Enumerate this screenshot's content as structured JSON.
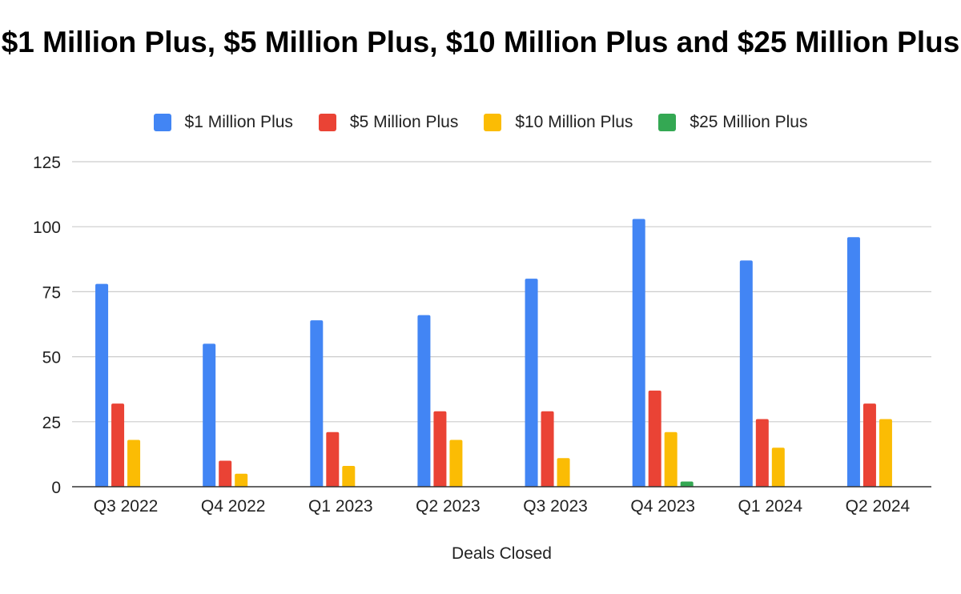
{
  "chart_data": {
    "type": "bar",
    "title": "$1 Million Plus, $5 Million Plus, $10 Million Plus and $25 Million Plus",
    "xlabel": "Deals Closed",
    "ylabel": "",
    "ylim": [
      0,
      125
    ],
    "yticks": [
      "0",
      "25",
      "50",
      "75",
      "100",
      "125"
    ],
    "grid": true,
    "legend_position": "top",
    "categories": [
      "Q3 2022",
      "Q4 2022",
      "Q1 2023",
      "Q2 2023",
      "Q3 2023",
      "Q4 2023",
      "Q1 2024",
      "Q2 2024"
    ],
    "series": [
      {
        "name": "$1 Million Plus",
        "color": "#4285F4",
        "values": [
          78,
          55,
          64,
          66,
          80,
          103,
          87,
          96
        ]
      },
      {
        "name": "$5 Million Plus",
        "color": "#EA4335",
        "values": [
          32,
          10,
          21,
          29,
          29,
          37,
          26,
          32
        ]
      },
      {
        "name": "$10 Million Plus",
        "color": "#FBBC04",
        "values": [
          18,
          5,
          8,
          18,
          11,
          21,
          15,
          26
        ]
      },
      {
        "name": "$25 Million Plus",
        "color": "#34A853",
        "values": [
          0,
          0,
          0,
          0,
          0,
          2,
          0,
          0
        ]
      }
    ]
  }
}
